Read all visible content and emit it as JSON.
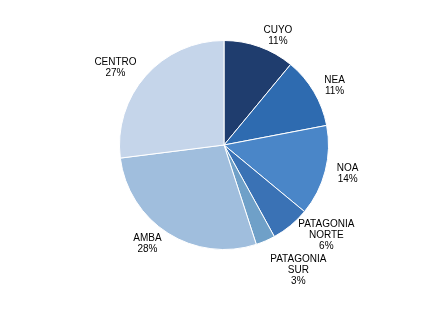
{
  "chart_data": {
    "type": "pie",
    "categories": [
      "CUYO",
      "NEA",
      "NOA",
      "PATAGONIA\nNORTE",
      "PATAGONIA\nSUR",
      "AMBA",
      "CENTRO"
    ],
    "values": [
      11,
      11,
      14,
      6,
      3,
      28,
      27
    ],
    "value_labels": [
      "11%",
      "11%",
      "14%",
      "6%",
      "3%",
      "28%",
      "27%"
    ],
    "colors": [
      "#1f3d6e",
      "#2e6bb0",
      "#4a86c8",
      "#3a72b5",
      "#6fa0c8",
      "#a0bedd",
      "#c5d5ea"
    ],
    "data_labels": true
  }
}
